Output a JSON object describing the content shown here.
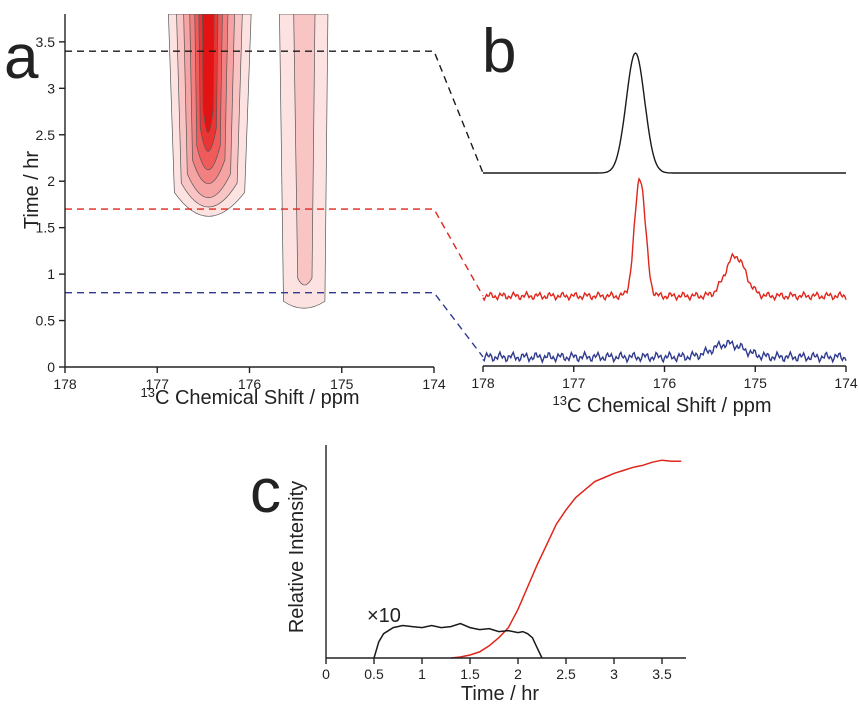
{
  "colors": {
    "black": "#1a1a1a",
    "red": "#e0251b",
    "blue": "#2f3a8f",
    "contour_levels": [
      "#fde2e2",
      "#f9c4c4",
      "#f5a3a3",
      "#f28080",
      "#ef5b5b",
      "#ea3535",
      "#e31313"
    ]
  },
  "chart_data": [
    {
      "panel": "a",
      "type": "heatmap",
      "xlabel_sup": "13",
      "xlabel_main": "C Chemical Shift / ppm",
      "ylabel": "Time / hr",
      "xlim": [
        178,
        174
      ],
      "ylim": [
        0,
        3.8
      ],
      "xticks": [
        178,
        177,
        176,
        175,
        174
      ],
      "yticks": [
        0,
        0.5,
        1,
        1.5,
        2,
        2.5,
        3,
        3.5
      ],
      "features": [
        {
          "name": "main peak",
          "shift_ppm": 176.45,
          "onset_hr": 1.5,
          "end_hr": 3.8,
          "peak_level": 7
        },
        {
          "name": "minor peak",
          "shift_ppm": 175.4,
          "onset_hr": 0.6,
          "end_hr": 3.8,
          "peak_level": 2
        }
      ],
      "guide_lines": [
        {
          "time_hr": 3.4,
          "color": "black"
        },
        {
          "time_hr": 1.7,
          "color": "red"
        },
        {
          "time_hr": 0.8,
          "color": "blue"
        }
      ]
    },
    {
      "panel": "b",
      "type": "line",
      "xlabel_sup": "13",
      "xlabel_main": "C Chemical Shift / ppm",
      "xlim": [
        178,
        174
      ],
      "xticks": [
        178,
        177,
        176,
        175,
        174
      ],
      "series": [
        {
          "color": "black",
          "time_hr": 3.4,
          "peaks": [
            {
              "ppm": 176.32,
              "height": 1.0,
              "width": 0.12
            }
          ]
        },
        {
          "color": "red",
          "time_hr": 1.7,
          "peaks": [
            {
              "ppm": 176.27,
              "height": 0.95,
              "width": 0.07
            },
            {
              "ppm": 175.22,
              "height": 0.32,
              "width": 0.13
            }
          ]
        },
        {
          "color": "blue",
          "time_hr": 0.8,
          "peaks": [
            {
              "ppm": 175.3,
              "height": 0.33,
              "width": 0.2
            }
          ]
        }
      ]
    },
    {
      "panel": "c",
      "type": "line",
      "xlabel": "Time / hr",
      "ylabel": "Relative Intensity",
      "xlim": [
        0,
        3.75
      ],
      "xticks": [
        0,
        0.5,
        1,
        1.5,
        2,
        2.5,
        3,
        3.5
      ],
      "ylim": [
        0,
        1.05
      ],
      "annotation": "×10",
      "series": [
        {
          "color": "red",
          "x": [
            1.3,
            1.4,
            1.5,
            1.6,
            1.7,
            1.8,
            1.9,
            2.0,
            2.1,
            2.2,
            2.3,
            2.4,
            2.5,
            2.6,
            2.7,
            2.8,
            2.9,
            3.0,
            3.1,
            3.2,
            3.3,
            3.4,
            3.5,
            3.6,
            3.7
          ],
          "y": [
            0.0,
            0.005,
            0.015,
            0.03,
            0.06,
            0.1,
            0.15,
            0.24,
            0.35,
            0.46,
            0.56,
            0.66,
            0.73,
            0.79,
            0.83,
            0.87,
            0.89,
            0.91,
            0.925,
            0.94,
            0.95,
            0.965,
            0.975,
            0.97,
            0.97
          ]
        },
        {
          "color": "black",
          "label": "×10",
          "x": [
            0.5,
            0.55,
            0.6,
            0.7,
            0.8,
            0.9,
            1.0,
            1.1,
            1.2,
            1.3,
            1.4,
            1.5,
            1.6,
            1.7,
            1.8,
            1.9,
            2.0,
            2.05,
            2.1,
            2.15,
            2.2,
            2.25
          ],
          "y": [
            0.0,
            0.08,
            0.12,
            0.15,
            0.16,
            0.155,
            0.15,
            0.16,
            0.15,
            0.155,
            0.17,
            0.15,
            0.14,
            0.145,
            0.13,
            0.135,
            0.125,
            0.13,
            0.12,
            0.1,
            0.05,
            0.0
          ]
        }
      ]
    }
  ]
}
